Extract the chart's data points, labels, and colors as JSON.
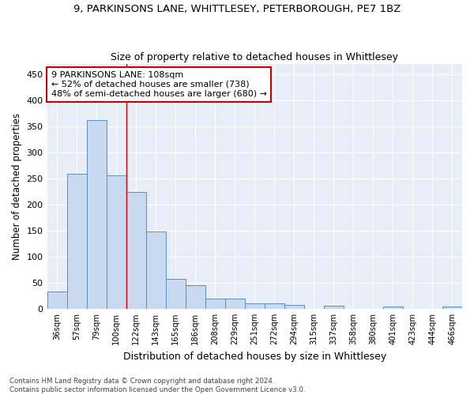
{
  "title1": "9, PARKINSONS LANE, WHITTLESEY, PETERBOROUGH, PE7 1BZ",
  "title2": "Size of property relative to detached houses in Whittlesey",
  "xlabel": "Distribution of detached houses by size in Whittlesey",
  "ylabel": "Number of detached properties",
  "bar_color": "#c9d9f0",
  "bar_edge_color": "#5b8ec4",
  "bg_color": "#e8eef8",
  "categories": [
    "36sqm",
    "57sqm",
    "79sqm",
    "100sqm",
    "122sqm",
    "143sqm",
    "165sqm",
    "186sqm",
    "208sqm",
    "229sqm",
    "251sqm",
    "272sqm",
    "294sqm",
    "315sqm",
    "337sqm",
    "358sqm",
    "380sqm",
    "401sqm",
    "423sqm",
    "444sqm",
    "466sqm"
  ],
  "values": [
    33,
    260,
    363,
    256,
    225,
    148,
    57,
    45,
    20,
    19,
    11,
    10,
    8,
    0,
    6,
    0,
    0,
    5,
    0,
    0,
    5
  ],
  "vline_x": 3.5,
  "ann_line1": "9 PARKINSONS LANE: 108sqm",
  "ann_line2": "← 52% of detached houses are smaller (738)",
  "ann_line3": "48% of semi-detached houses are larger (680) →",
  "annotation_box_color": "white",
  "annotation_box_edge": "#cc0000",
  "footer1": "Contains HM Land Registry data © Crown copyright and database right 2024.",
  "footer2": "Contains public sector information licensed under the Open Government Licence v3.0.",
  "ylim": [
    0,
    470
  ],
  "yticks": [
    0,
    50,
    100,
    150,
    200,
    250,
    300,
    350,
    400,
    450
  ]
}
